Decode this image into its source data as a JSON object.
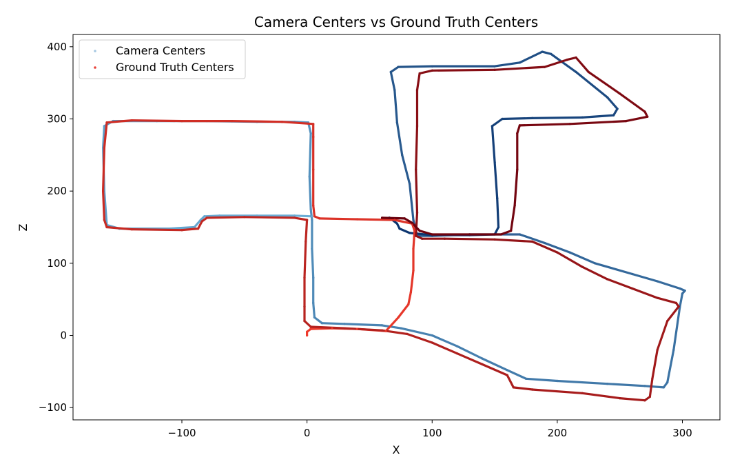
{
  "chart_data": {
    "type": "scatter",
    "title": "Camera Centers vs Ground Truth Centers",
    "xlabel": "X",
    "ylabel": "Z",
    "xlim": [
      -187,
      330
    ],
    "ylim": [
      -117,
      417
    ],
    "xticks": [
      -100,
      0,
      100,
      200,
      300
    ],
    "yticks": [
      -100,
      0,
      100,
      200,
      300,
      400
    ],
    "xtick_labels": [
      "−100",
      "0",
      "100",
      "200",
      "300"
    ],
    "ytick_labels": [
      "−100",
      "0",
      "100",
      "200",
      "300",
      "400"
    ],
    "grid": false,
    "legend": {
      "position": "upper-left"
    },
    "colormap_note": "points colored by sequence index (Blues for camera, Reds for ground truth)",
    "series": [
      {
        "name": "Camera Centers",
        "legend_color": "#a6c8e2",
        "color_start": "#6baed6",
        "color_end": "#08306b",
        "points": [
          [
            4,
            165
          ],
          [
            -10,
            166
          ],
          [
            -40,
            166
          ],
          [
            -70,
            166
          ],
          [
            -82,
            165
          ],
          [
            -85,
            160
          ],
          [
            -90,
            150
          ],
          [
            -110,
            148
          ],
          [
            -150,
            148
          ],
          [
            -160,
            153
          ],
          [
            -162,
            200
          ],
          [
            -163,
            260
          ],
          [
            -162,
            290
          ],
          [
            -155,
            297
          ],
          [
            -120,
            297
          ],
          [
            -80,
            297
          ],
          [
            -40,
            296
          ],
          [
            -10,
            296
          ],
          [
            1,
            295
          ],
          [
            3,
            280
          ],
          [
            2,
            220
          ],
          [
            3,
            175
          ],
          [
            4,
            160
          ],
          [
            4,
            120
          ],
          [
            5,
            80
          ],
          [
            5,
            45
          ],
          [
            6,
            25
          ],
          [
            12,
            17
          ],
          [
            30,
            16
          ],
          [
            60,
            14
          ],
          [
            75,
            10
          ],
          [
            100,
            0
          ],
          [
            120,
            -15
          ],
          [
            140,
            -32
          ],
          [
            160,
            -48
          ],
          [
            175,
            -60
          ],
          [
            200,
            -63
          ],
          [
            240,
            -67
          ],
          [
            270,
            -70
          ],
          [
            285,
            -72
          ],
          [
            288,
            -65
          ],
          [
            293,
            -20
          ],
          [
            298,
            40
          ],
          [
            300,
            58
          ],
          [
            302,
            62
          ],
          [
            298,
            65
          ],
          [
            280,
            75
          ],
          [
            260,
            85
          ],
          [
            230,
            100
          ],
          [
            210,
            115
          ],
          [
            190,
            128
          ],
          [
            170,
            140
          ],
          [
            130,
            140
          ],
          [
            100,
            138
          ],
          [
            88,
            138
          ],
          [
            85,
            160
          ],
          [
            82,
            210
          ],
          [
            76,
            250
          ],
          [
            72,
            295
          ],
          [
            70,
            340
          ],
          [
            67,
            365
          ],
          [
            73,
            372
          ],
          [
            100,
            373
          ],
          [
            150,
            373
          ],
          [
            170,
            378
          ],
          [
            188,
            393
          ],
          [
            195,
            390
          ],
          [
            215,
            365
          ],
          [
            240,
            330
          ],
          [
            248,
            314
          ],
          [
            245,
            305
          ],
          [
            220,
            302
          ],
          [
            180,
            301
          ],
          [
            156,
            300
          ],
          [
            148,
            290
          ],
          [
            150,
            240
          ],
          [
            152,
            190
          ],
          [
            153,
            150
          ],
          [
            150,
            140
          ],
          [
            130,
            139
          ],
          [
            100,
            139
          ],
          [
            82,
            142
          ],
          [
            74,
            148
          ],
          [
            72,
            155
          ],
          [
            66,
            163
          ],
          [
            60,
            162
          ]
        ]
      },
      {
        "name": "Ground Truth Centers",
        "legend_color": "#e8423a",
        "color_start": "#ef3b2c",
        "color_end": "#67000d",
        "points": [
          [
            0,
            0
          ],
          [
            0,
            5
          ],
          [
            3,
            9
          ],
          [
            20,
            10
          ],
          [
            40,
            9
          ],
          [
            63,
            6
          ],
          [
            73,
            25
          ],
          [
            81,
            43
          ],
          [
            83,
            60
          ],
          [
            85,
            90
          ],
          [
            85,
            120
          ],
          [
            86,
            145
          ],
          [
            84,
            155
          ],
          [
            70,
            160
          ],
          [
            40,
            161
          ],
          [
            10,
            162
          ],
          [
            6,
            165
          ],
          [
            5,
            180
          ],
          [
            5,
            230
          ],
          [
            5,
            275
          ],
          [
            5,
            293
          ],
          [
            -20,
            296
          ],
          [
            -60,
            297
          ],
          [
            -100,
            297
          ],
          [
            -140,
            298
          ],
          [
            -160,
            295
          ],
          [
            -162,
            260
          ],
          [
            -163,
            200
          ],
          [
            -162,
            160
          ],
          [
            -160,
            150
          ],
          [
            -140,
            147
          ],
          [
            -100,
            146
          ],
          [
            -87,
            148
          ],
          [
            -84,
            158
          ],
          [
            -80,
            163
          ],
          [
            -50,
            164
          ],
          [
            -10,
            163
          ],
          [
            0,
            160
          ],
          [
            -1,
            130
          ],
          [
            -2,
            80
          ],
          [
            -2,
            40
          ],
          [
            -2,
            20
          ],
          [
            3,
            12
          ],
          [
            30,
            10
          ],
          [
            60,
            7
          ],
          [
            80,
            2
          ],
          [
            100,
            -10
          ],
          [
            120,
            -25
          ],
          [
            140,
            -40
          ],
          [
            160,
            -55
          ],
          [
            165,
            -72
          ],
          [
            180,
            -75
          ],
          [
            220,
            -80
          ],
          [
            250,
            -87
          ],
          [
            270,
            -90
          ],
          [
            274,
            -85
          ],
          [
            276,
            -60
          ],
          [
            280,
            -20
          ],
          [
            288,
            20
          ],
          [
            297,
            40
          ],
          [
            295,
            45
          ],
          [
            280,
            52
          ],
          [
            260,
            65
          ],
          [
            240,
            78
          ],
          [
            220,
            95
          ],
          [
            200,
            115
          ],
          [
            180,
            130
          ],
          [
            150,
            133
          ],
          [
            110,
            134
          ],
          [
            92,
            134
          ],
          [
            87,
            138
          ],
          [
            88,
            170
          ],
          [
            87,
            230
          ],
          [
            88,
            290
          ],
          [
            88,
            340
          ],
          [
            90,
            363
          ],
          [
            100,
            367
          ],
          [
            150,
            368
          ],
          [
            190,
            372
          ],
          [
            208,
            382
          ],
          [
            215,
            385
          ],
          [
            225,
            365
          ],
          [
            250,
            335
          ],
          [
            270,
            310
          ],
          [
            272,
            303
          ],
          [
            255,
            297
          ],
          [
            210,
            293
          ],
          [
            170,
            291
          ],
          [
            168,
            280
          ],
          [
            168,
            230
          ],
          [
            166,
            180
          ],
          [
            163,
            145
          ],
          [
            155,
            140
          ],
          [
            130,
            140
          ],
          [
            100,
            140
          ],
          [
            90,
            145
          ],
          [
            84,
            156
          ],
          [
            78,
            162
          ],
          [
            60,
            163
          ]
        ]
      }
    ]
  }
}
